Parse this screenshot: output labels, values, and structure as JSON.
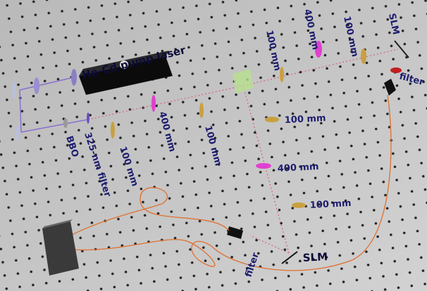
{
  "labels": [
    {
      "text": "He-Cd pump laser"
    },
    {
      "text": "BBO"
    },
    {
      "text": "325-nm filter"
    },
    {
      "text": "100 mm"
    },
    {
      "text": "400 mm"
    },
    {
      "text": "100 mm"
    },
    {
      "text": "100 mm"
    },
    {
      "text": "400 mm"
    },
    {
      "text": "100 mm"
    },
    {
      "text": "SLM"
    },
    {
      "text": "filter"
    },
    {
      "text": "100 mm"
    },
    {
      "text": "400 mm"
    },
    {
      "text": "100 mm"
    },
    {
      "text": "filter"
    },
    {
      "text": "SLM"
    }
  ]
}
